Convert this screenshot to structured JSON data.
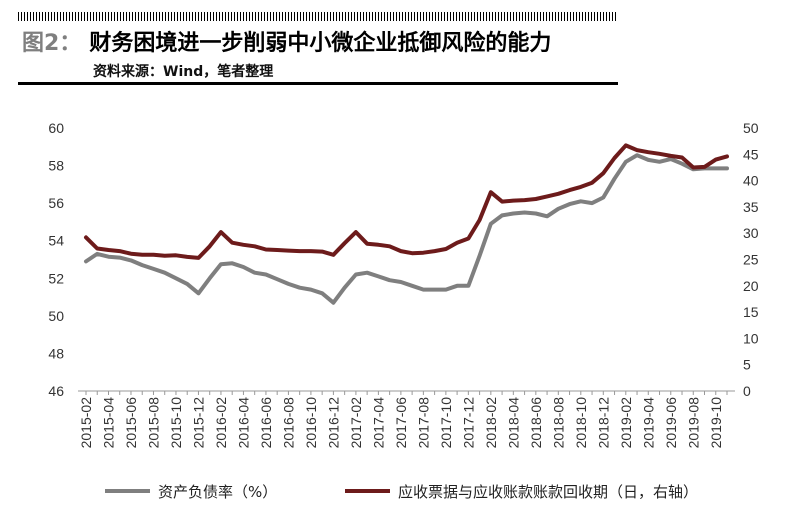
{
  "header": {
    "fig_label": "图2：",
    "title": "财务困境进一步削弱中小微企业抵御风险的能力",
    "source": "资料来源：Wind，笔者整理"
  },
  "colors": {
    "series1": "#7f7f7f",
    "series2": "#6d1b1b",
    "axis": "#999999"
  },
  "chart_data": {
    "type": "line",
    "x": [
      "2015-02",
      "2015-03",
      "2015-04",
      "2015-05",
      "2015-06",
      "2015-07",
      "2015-08",
      "2015-09",
      "2015-10",
      "2015-11",
      "2015-12",
      "2016-01",
      "2016-02",
      "2016-03",
      "2016-04",
      "2016-05",
      "2016-06",
      "2016-07",
      "2016-08",
      "2016-09",
      "2016-10",
      "2016-11",
      "2016-12",
      "2017-01",
      "2017-02",
      "2017-03",
      "2017-04",
      "2017-05",
      "2017-06",
      "2017-07",
      "2017-08",
      "2017-09",
      "2017-10",
      "2017-11",
      "2017-12",
      "2018-01",
      "2018-02",
      "2018-03",
      "2018-04",
      "2018-05",
      "2018-06",
      "2018-07",
      "2018-08",
      "2018-09",
      "2018-10",
      "2018-11",
      "2018-12",
      "2019-01",
      "2019-02",
      "2019-03",
      "2019-04",
      "2019-05",
      "2019-06",
      "2019-07",
      "2019-08",
      "2019-09",
      "2019-10",
      "2019-11"
    ],
    "x_tick_labels": [
      "2015-02",
      "2015-04",
      "2015-06",
      "2015-08",
      "2015-10",
      "2015-12",
      "2016-02",
      "2016-04",
      "2016-06",
      "2016-08",
      "2016-10",
      "2016-12",
      "2017-02",
      "2017-04",
      "2017-06",
      "2017-08",
      "2017-10",
      "2017-12",
      "2018-02",
      "2018-04",
      "2018-06",
      "2018-08",
      "2018-10",
      "2018-12",
      "2019-02",
      "2019-04",
      "2019-06",
      "2019-08",
      "2019-10"
    ],
    "y_left": {
      "ylim": [
        46,
        60
      ],
      "ticks": [
        "46",
        "48",
        "50",
        "52",
        "54",
        "56",
        "58",
        "60"
      ]
    },
    "y_right": {
      "ylim": [
        0,
        50
      ],
      "ticks": [
        "0",
        "5",
        "10",
        "15",
        "20",
        "25",
        "30",
        "35",
        "40",
        "45",
        "50"
      ]
    },
    "series": [
      {
        "name": "资产负债率（%）",
        "axis": "left",
        "values": [
          52.9,
          53.3,
          53.15,
          53.1,
          52.95,
          52.7,
          52.5,
          52.3,
          52.0,
          51.7,
          51.2,
          52.0,
          52.75,
          52.8,
          52.6,
          52.3,
          52.2,
          51.95,
          51.7,
          51.5,
          51.4,
          51.2,
          50.7,
          51.5,
          52.2,
          52.3,
          52.1,
          51.9,
          51.8,
          51.6,
          51.4,
          51.4,
          51.4,
          51.6,
          51.6,
          53.2,
          54.9,
          55.35,
          55.45,
          55.5,
          55.45,
          55.3,
          55.7,
          55.95,
          56.1,
          56.0,
          56.3,
          57.3,
          58.2,
          58.55,
          58.3,
          58.2,
          58.35,
          58.1,
          57.8,
          57.85,
          57.85,
          57.85
        ]
      },
      {
        "name": "应收票据与应收账款账款回收期（日，右轴）",
        "axis": "right",
        "values": [
          29.2,
          27.1,
          26.8,
          26.6,
          26.1,
          25.9,
          25.9,
          25.7,
          25.8,
          25.5,
          25.3,
          27.5,
          30.2,
          28.2,
          27.8,
          27.5,
          26.9,
          26.8,
          26.7,
          26.6,
          26.6,
          26.5,
          25.9,
          28.1,
          30.2,
          28.0,
          27.8,
          27.5,
          26.6,
          26.2,
          26.3,
          26.6,
          27.0,
          28.2,
          29.0,
          32.5,
          37.8,
          36.0,
          36.2,
          36.3,
          36.5,
          37.0,
          37.5,
          38.2,
          38.8,
          39.6,
          41.4,
          44.3,
          46.7,
          45.8,
          45.4,
          45.1,
          44.7,
          44.4,
          42.5,
          42.6,
          44.0,
          44.6
        ]
      }
    ]
  }
}
